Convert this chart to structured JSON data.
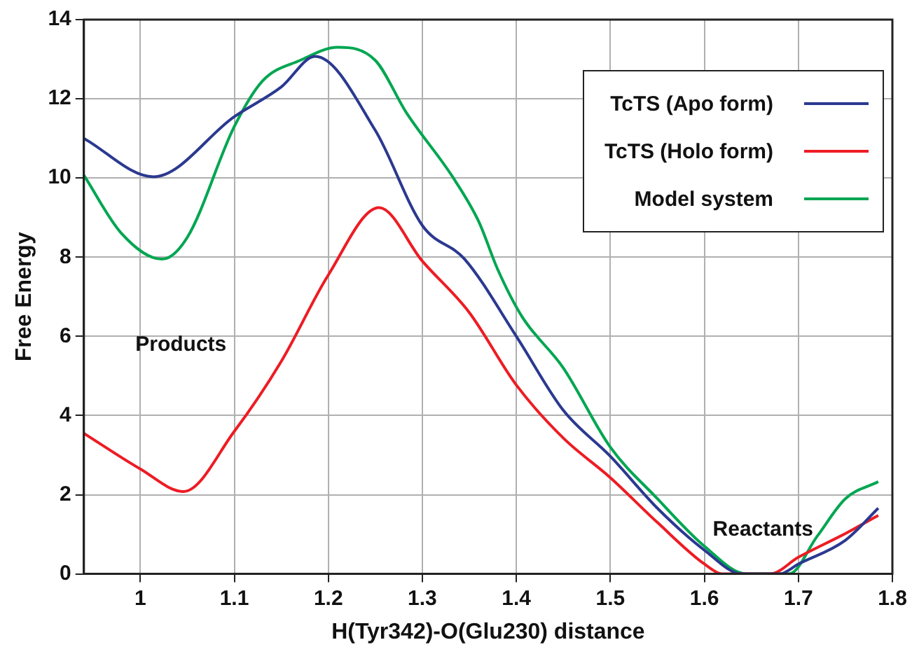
{
  "chart_data": {
    "type": "line",
    "xlabel": "H(Tyr342)-O(Glu230) distance",
    "ylabel": "Free Energy",
    "xlim": [
      0.94,
      1.8
    ],
    "xticks": [
      1,
      1.1,
      1.2,
      1.3,
      1.4,
      1.5,
      1.6,
      1.7,
      1.8
    ],
    "ylim": [
      0,
      14
    ],
    "yticks": [
      0,
      2,
      4,
      6,
      8,
      10,
      12,
      14
    ],
    "grid": true,
    "legend": "top right",
    "marker": "none",
    "line_style": "solid",
    "annotations": [
      "Products",
      "Reactants"
    ],
    "series": [
      {
        "name": "TcTS (Apo form)",
        "color": "#2b3990",
        "x": [
          0.94,
          1.014,
          1.1,
          1.15,
          1.186,
          1.25,
          1.3,
          1.345,
          1.4,
          1.45,
          1.5,
          1.55,
          1.6,
          1.64,
          1.68,
          1.7,
          1.75,
          1.785
        ],
        "values": [
          11.0,
          10.03,
          11.55,
          12.3,
          13.07,
          11.2,
          8.8,
          7.95,
          6.0,
          4.13,
          2.97,
          1.66,
          0.6,
          0,
          0,
          0.25,
          0.85,
          1.66
        ]
      },
      {
        "name": "TcTS (Holo form)",
        "color": "#ed1c24",
        "x": [
          0.94,
          1.0,
          1.046,
          1.1,
          1.15,
          1.2,
          1.254,
          1.3,
          1.35,
          1.4,
          1.45,
          1.5,
          1.55,
          1.6,
          1.62,
          1.67,
          1.7,
          1.75,
          1.785
        ],
        "values": [
          3.55,
          2.65,
          2.08,
          3.6,
          5.37,
          7.55,
          9.25,
          7.9,
          6.6,
          4.77,
          3.43,
          2.43,
          1.3,
          0.25,
          0,
          0,
          0.42,
          1.02,
          1.48
        ]
      },
      {
        "name": "Model system",
        "color": "#00a651",
        "x": [
          0.94,
          0.98,
          1.023,
          1.05,
          1.1,
          1.13,
          1.17,
          1.21,
          1.25,
          1.283,
          1.333,
          1.36,
          1.38,
          1.406,
          1.45,
          1.5,
          1.55,
          1.6,
          1.645,
          1.69,
          1.72,
          1.75,
          1.785
        ],
        "values": [
          10.07,
          8.6,
          7.95,
          8.5,
          11.3,
          12.45,
          12.97,
          13.3,
          12.97,
          11.65,
          10.0,
          8.9,
          7.7,
          6.5,
          5.2,
          3.2,
          1.9,
          0.7,
          0,
          0,
          0.95,
          1.9,
          2.33
        ]
      }
    ]
  }
}
